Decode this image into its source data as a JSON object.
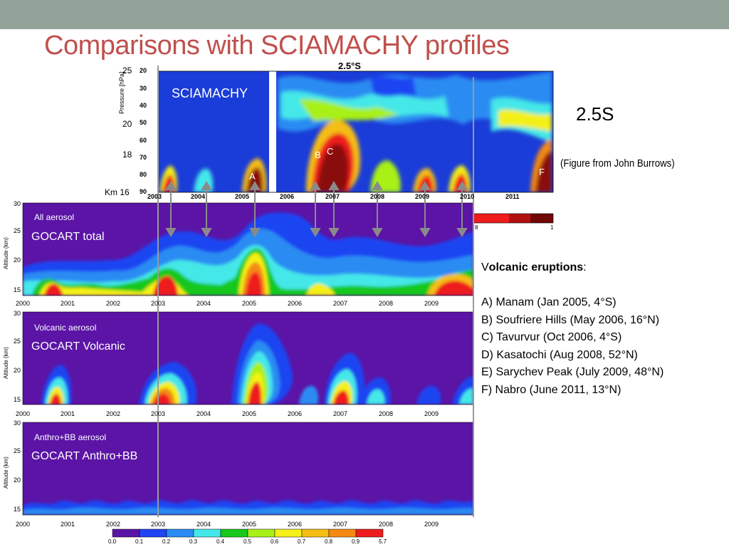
{
  "slide": {
    "title": "Comparisons with SCIAMACHY profiles",
    "location_label": "2.5S",
    "credit": "(Figure from John Burrows)"
  },
  "sciamachy": {
    "panel_title": "2.5°S",
    "label": "SCIAMACHY",
    "y_axis_label": "Pressure [hPa]",
    "pressure_ticks": [
      "20",
      "30",
      "40",
      "50",
      "60",
      "70",
      "80",
      "90"
    ],
    "km_ticks": [
      "25",
      "20",
      "18",
      "Km 16"
    ],
    "year_ticks": [
      "2003",
      "2004",
      "2005",
      "2006",
      "2007",
      "2008",
      "2009",
      "2010",
      "2011"
    ],
    "eruption_markers": [
      "A",
      "B",
      "C",
      "F"
    ],
    "colorbar_ticks": [
      "8",
      "1"
    ]
  },
  "volcanic_list": {
    "heading_v": "V",
    "heading_rest": "olcanic eruptions",
    "heading_colon": ":",
    "items": [
      "A) Manam (Jan 2005, 4°S)",
      "B) Soufriere Hills (May 2006, 16°N)",
      "C) Tavurvur (Oct 2006, 4°S)",
      "D) Kasatochi (Aug 2008, 52°N)",
      "E) Sarychev Peak (July 2009, 48°N)",
      "F) Nabro (June 2011, 13°N)"
    ]
  },
  "gocart_panels": [
    {
      "subtitle": "All aerosol",
      "label": "GOCART total",
      "y_axis_label": "Altitude (km)"
    },
    {
      "subtitle": "Volcanic aerosol",
      "label": "GOCART Volcanic",
      "y_axis_label": "Altitude (km)"
    },
    {
      "subtitle": "Anthro+BB aerosol",
      "label": "GOCART Anthro+BB",
      "y_axis_label": "Altitude (km)"
    }
  ],
  "gocart_axes": {
    "y_ticks": [
      "30",
      "25",
      "20",
      "15"
    ],
    "x_ticks": [
      "2000",
      "2001",
      "2002",
      "2003",
      "2004",
      "2005",
      "2006",
      "2007",
      "2008",
      "2009"
    ]
  },
  "colorbar": {
    "ticks": [
      "0.0",
      "0.1",
      "0.2",
      "0.3",
      "0.4",
      "0.5",
      "0.6",
      "0.7",
      "0.8",
      "0.9",
      "5.7"
    ],
    "colors": [
      "#5b14a6",
      "#1f44f2",
      "#2a8cf2",
      "#44e8e8",
      "#18c81c",
      "#a8f018",
      "#f4f018",
      "#f4be14",
      "#f48a14",
      "#ee1c1c"
    ]
  },
  "colors": {
    "title": "#c0504d",
    "topbar": "#93a299",
    "background_aerosol": "#5b14a6",
    "sciamachy_background": "#1a3cd8"
  }
}
